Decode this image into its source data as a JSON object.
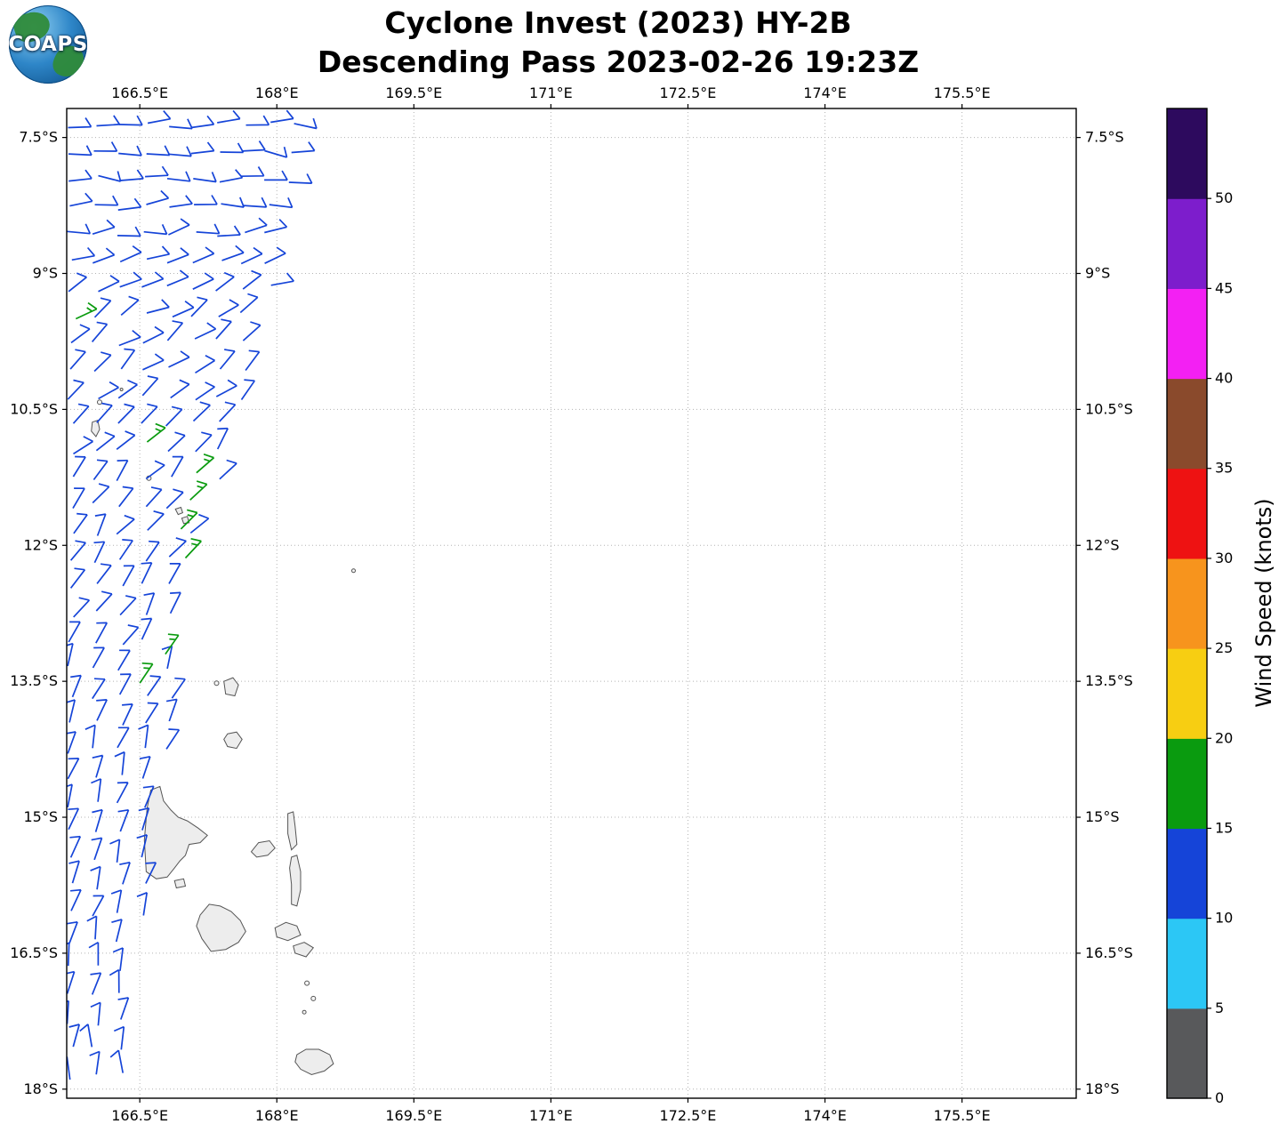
{
  "logo": {
    "text": "COAPS"
  },
  "header": {
    "title_line1": "Cyclone Invest (2023) HY-2B",
    "title_line2": "Descending Pass 2023-02-26 19:23Z"
  },
  "colorbar": {
    "label": "Wind Speed (knots)",
    "ticks": [
      0,
      5,
      10,
      15,
      20,
      25,
      30,
      35,
      40,
      45,
      50
    ],
    "segments": [
      {
        "from": 0,
        "to": 5,
        "color": "#58595b"
      },
      {
        "from": 5,
        "to": 10,
        "color": "#2cc7f5"
      },
      {
        "from": 10,
        "to": 15,
        "color": "#1544d8"
      },
      {
        "from": 15,
        "to": 20,
        "color": "#0a9b0f"
      },
      {
        "from": 20,
        "to": 25,
        "color": "#f7ce12"
      },
      {
        "from": 25,
        "to": 30,
        "color": "#f7941d"
      },
      {
        "from": 30,
        "to": 35,
        "color": "#ee1212"
      },
      {
        "from": 35,
        "to": 40,
        "color": "#8a4a2c"
      },
      {
        "from": 40,
        "to": 45,
        "color": "#f320f3"
      },
      {
        "from": 45,
        "to": 50,
        "color": "#7d1dcc"
      },
      {
        "from": 50,
        "to": 55,
        "color": "#2d0a5e"
      }
    ]
  },
  "chart_data": {
    "type": "scatter",
    "subtype": "satellite_wind_barb_map",
    "title": "Cyclone Invest (2023) HY-2B",
    "subtitle": "Descending Pass 2023-02-26 19:23Z",
    "x_axis": {
      "tick_labels": [
        "166.5°E",
        "168°E",
        "169.5°E",
        "171°E",
        "172.5°E",
        "174°E",
        "175.5°E"
      ],
      "tick_values_deg_e": [
        166.5,
        168,
        169.5,
        171,
        172.5,
        174,
        175.5
      ],
      "range_deg_e": [
        165.7,
        176.75
      ]
    },
    "y_axis": {
      "tick_labels": [
        "7.5°S",
        "9°S",
        "10.5°S",
        "12°S",
        "13.5°S",
        "15°S",
        "16.5°S",
        "18°S"
      ],
      "tick_values_deg_s": [
        7.5,
        9,
        10.5,
        12,
        13.5,
        15,
        16.5,
        18
      ],
      "range_deg_s": [
        7.18,
        18.1
      ]
    },
    "grid": "dotted",
    "legend": "colorbar right, Wind Speed (knots), 0-55 in 5-knot bins",
    "wind_barbs": {
      "units": "knots",
      "full_barb_knots": 10,
      "half_barb_knots": 5,
      "swath_west_edge_lon_deg_e": 165.76,
      "barb_spacing_deg": 0.27,
      "default_speed_knots": 10,
      "rows_format": [
        "lat_deg_s",
        "swath_east_edge_lon_deg_e",
        "wind_from_dir_deg"
      ],
      "rows": [
        [
          7.38,
          168.32,
          96
        ],
        [
          7.68,
          168.28,
          100
        ],
        [
          7.98,
          168.22,
          102
        ],
        [
          8.28,
          168.16,
          97
        ],
        [
          8.58,
          168.08,
          88
        ],
        [
          8.88,
          167.98,
          80
        ],
        [
          9.18,
          167.92,
          74
        ],
        [
          9.48,
          167.86,
          68
        ],
        [
          9.78,
          167.8,
          63
        ],
        [
          10.08,
          167.74,
          58
        ],
        [
          10.38,
          167.66,
          55
        ],
        [
          10.68,
          167.57,
          52
        ],
        [
          10.98,
          167.5,
          50
        ],
        [
          11.28,
          167.42,
          48
        ],
        [
          11.58,
          167.32,
          46
        ],
        [
          11.88,
          167.22,
          44
        ],
        [
          12.18,
          167.12,
          42
        ],
        [
          12.48,
          167.02,
          40
        ],
        [
          12.78,
          166.96,
          38
        ],
        [
          13.08,
          166.9,
          36
        ],
        [
          13.38,
          166.86,
          34
        ],
        [
          13.68,
          166.92,
          32
        ],
        [
          13.98,
          166.9,
          31
        ],
        [
          14.28,
          166.86,
          30
        ],
        [
          14.58,
          166.8,
          28
        ],
        [
          14.88,
          166.76,
          27
        ],
        [
          15.18,
          166.7,
          26
        ],
        [
          15.48,
          166.66,
          24
        ],
        [
          15.78,
          166.62,
          23
        ],
        [
          16.08,
          166.6,
          22
        ],
        [
          16.38,
          166.56,
          20
        ],
        [
          16.68,
          166.54,
          18
        ],
        [
          16.98,
          166.52,
          17
        ],
        [
          17.28,
          166.5,
          15
        ],
        [
          17.58,
          166.46,
          13
        ],
        [
          17.88,
          166.44,
          11
        ]
      ],
      "stronger_format": [
        "lat_deg_s",
        "lon_deg_e",
        "wind_from_dir_deg"
      ],
      "stronger_speed_knots": 15,
      "stronger_barbs": [
        [
          9.5,
          165.8,
          65
        ],
        [
          10.86,
          166.58,
          52
        ],
        [
          11.2,
          167.12,
          49
        ],
        [
          11.5,
          167.05,
          47
        ],
        [
          11.82,
          166.95,
          45
        ],
        [
          12.14,
          167.0,
          43
        ],
        [
          13.2,
          166.78,
          35
        ],
        [
          13.52,
          166.5,
          34
        ]
      ]
    }
  }
}
